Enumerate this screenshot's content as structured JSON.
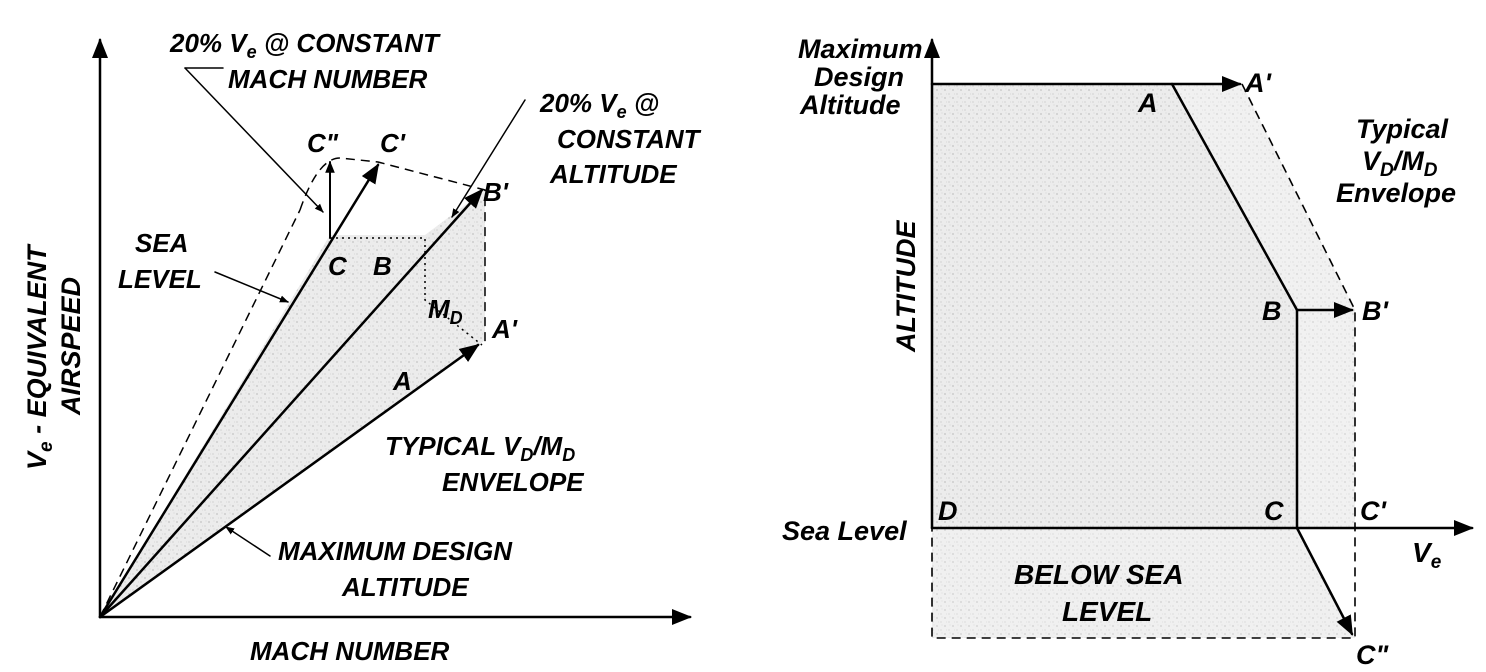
{
  "left_diagram": {
    "y_axis_label_line1": "V",
    "y_axis_label_sub": "e",
    "y_axis_label_rest": " - EQUIVALENT",
    "y_axis_label_line2": "AIRSPEED",
    "x_axis_label": "MACH NUMBER",
    "note_mach_line1_a": "20% V",
    "note_mach_line1_sub": "e",
    "note_mach_line1_b": " @ CONSTANT",
    "note_mach_line2": "MACH NUMBER",
    "note_alt_line1_a": "20% V",
    "note_alt_line1_sub": "e",
    "note_alt_line1_b": " @",
    "note_alt_line2": "CONSTANT",
    "note_alt_line3": "ALTITUDE",
    "sea_level_line1": "SEA",
    "sea_level_line2": "LEVEL",
    "point_c_double": "C\"",
    "point_c_prime": "C'",
    "point_b_prime": "B'",
    "point_c": "C",
    "point_b": "B",
    "md_main": "M",
    "md_sub": "D",
    "point_a_prime": "A'",
    "point_a": "A",
    "envelope_line1_a": "TYPICAL V",
    "envelope_line1_sub1": "D",
    "envelope_line1_mid": "/M",
    "envelope_line1_sub2": "D",
    "envelope_line2": "ENVELOPE",
    "max_alt_line1": "MAXIMUM DESIGN",
    "max_alt_line2": "ALTITUDE"
  },
  "right_diagram": {
    "max_alt_line1": "Maximum",
    "max_alt_line2": "Design",
    "max_alt_line3": "Altitude",
    "y_axis_label": "ALTITUDE",
    "sea_level": "Sea Level",
    "x_axis_main": "V",
    "x_axis_sub": "e",
    "point_a": "A",
    "point_a_prime": "A'",
    "envelope_line1": "Typical",
    "envelope_line2_a": "V",
    "envelope_line2_sub1": "D",
    "envelope_line2_mid": "/M",
    "envelope_line2_sub2": "D",
    "envelope_line3": "Envelope",
    "point_b": "B",
    "point_b_prime": "B'",
    "point_c": "C",
    "point_c_prime": "C'",
    "point_d": "D",
    "point_c_double": "C\"",
    "below_sea_line1": "BELOW SEA",
    "below_sea_line2": "LEVEL"
  }
}
